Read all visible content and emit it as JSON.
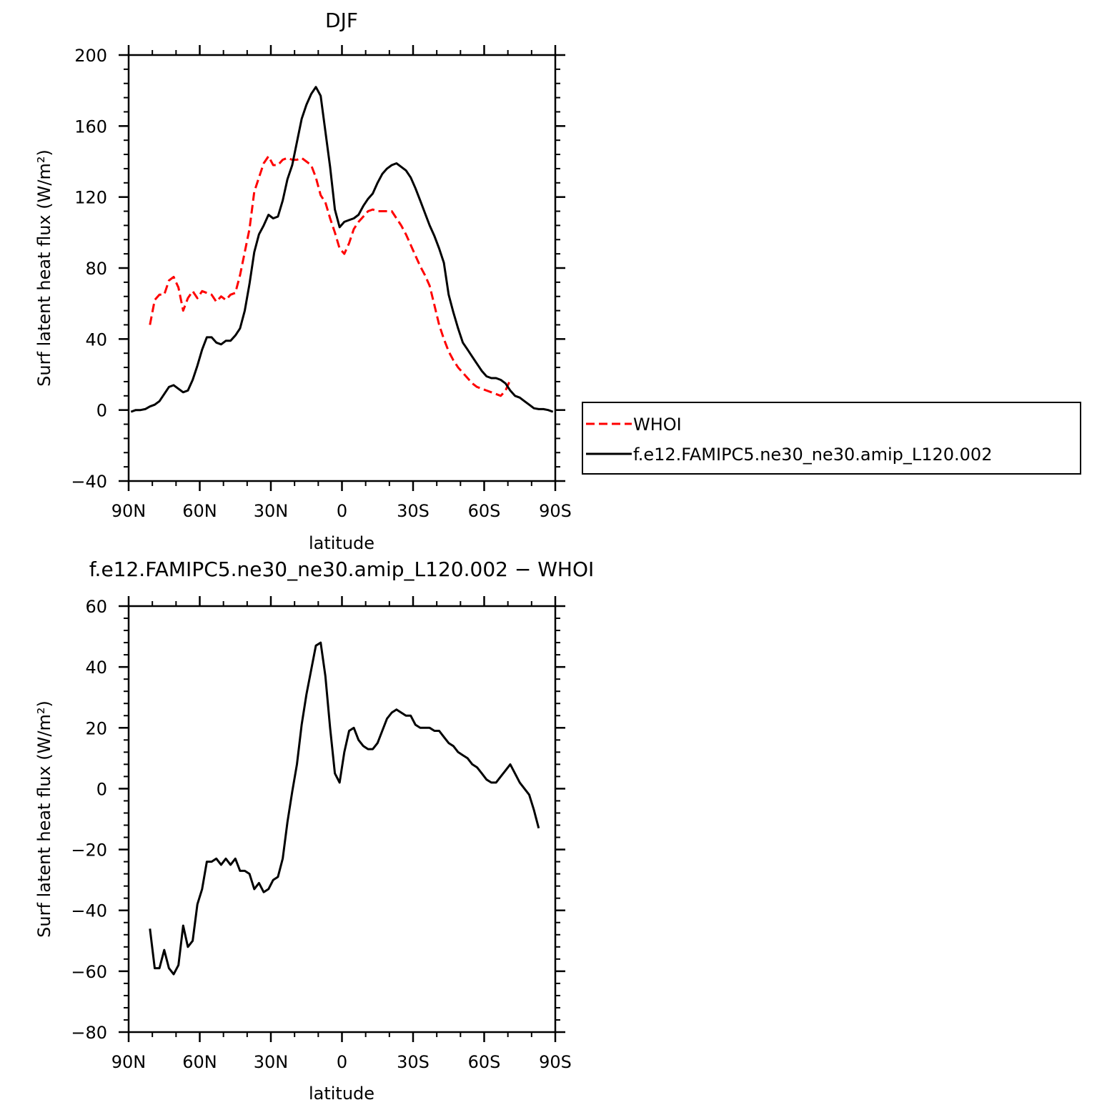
{
  "chart_data": [
    {
      "type": "line",
      "title": "DJF",
      "xlabel": "latitude",
      "ylabel": "Surf latent heat flux (W/m²)",
      "xlim": [
        90,
        -90
      ],
      "ylim": [
        -40,
        200
      ],
      "xticks": [
        {
          "value": 90,
          "label": "90N"
        },
        {
          "value": 60,
          "label": "60N"
        },
        {
          "value": 30,
          "label": "30N"
        },
        {
          "value": 0,
          "label": "0"
        },
        {
          "value": -30,
          "label": "30S"
        },
        {
          "value": -60,
          "label": "60S"
        },
        {
          "value": -90,
          "label": "90S"
        }
      ],
      "yticks": [
        {
          "value": 200,
          "label": "200"
        },
        {
          "value": 160,
          "label": "160"
        },
        {
          "value": 120,
          "label": "120"
        },
        {
          "value": 80,
          "label": "80"
        },
        {
          "value": 40,
          "label": "40"
        },
        {
          "value": 0,
          "label": "0"
        },
        {
          "value": -40,
          "label": "-40"
        }
      ],
      "legend": "outside-right",
      "series": [
        {
          "name": "WHOI",
          "color": "#ff0000",
          "dash": "dashed",
          "points": [
            [
              81,
              48
            ],
            [
              79,
              62
            ],
            [
              77,
              65
            ],
            [
              75,
              65
            ],
            [
              73,
              73
            ],
            [
              71,
              75
            ],
            [
              69,
              69
            ],
            [
              67,
              56
            ],
            [
              65,
              63
            ],
            [
              63,
              67
            ],
            [
              61,
              63
            ],
            [
              59,
              67
            ],
            [
              57,
              66
            ],
            [
              55,
              65
            ],
            [
              53,
              61
            ],
            [
              51,
              64
            ],
            [
              49,
              62
            ],
            [
              47,
              65
            ],
            [
              45,
              66
            ],
            [
              43,
              76
            ],
            [
              41,
              89
            ],
            [
              39,
              102
            ],
            [
              37,
              123
            ],
            [
              35,
              131
            ],
            [
              33,
              139
            ],
            [
              31,
              143
            ],
            [
              29,
              138
            ],
            [
              27,
              138
            ],
            [
              25,
              141
            ],
            [
              23,
              142
            ],
            [
              21,
              141
            ],
            [
              19,
              141
            ],
            [
              17,
              142
            ],
            [
              15,
              140
            ],
            [
              13,
              138
            ],
            [
              11,
              131
            ],
            [
              9,
              121
            ],
            [
              7,
              117
            ],
            [
              5,
              108
            ],
            [
              3,
              100
            ],
            [
              1,
              91
            ],
            [
              -1,
              88
            ],
            [
              -3,
              94
            ],
            [
              -5,
              102
            ],
            [
              -7,
              106
            ],
            [
              -9,
              109
            ],
            [
              -11,
              112
            ],
            [
              -13,
              113
            ],
            [
              -15,
              112
            ],
            [
              -17,
              112
            ],
            [
              -19,
              112
            ],
            [
              -21,
              112
            ],
            [
              -23,
              108
            ],
            [
              -25,
              104
            ],
            [
              -27,
              99
            ],
            [
              -29,
              93
            ],
            [
              -31,
              87
            ],
            [
              -33,
              81
            ],
            [
              -35,
              76
            ],
            [
              -37,
              70
            ],
            [
              -39,
              59
            ],
            [
              -41,
              48
            ],
            [
              -43,
              40
            ],
            [
              -45,
              33
            ],
            [
              -47,
              28
            ],
            [
              -49,
              24
            ],
            [
              -51,
              21
            ],
            [
              -53,
              18
            ],
            [
              -55,
              15
            ],
            [
              -57,
              13
            ],
            [
              -59,
              12
            ],
            [
              -61,
              11
            ],
            [
              -63,
              10
            ],
            [
              -65,
              9
            ],
            [
              -67,
              8
            ],
            [
              -69,
              11
            ],
            [
              -71,
              17
            ]
          ]
        },
        {
          "name": "f.e12.FAMIPC5.ne30_ne30.amip_L120.002",
          "color": "#000000",
          "dash": "solid",
          "points": [
            [
              89,
              -1
            ],
            [
              87,
              0
            ],
            [
              85,
              0
            ],
            [
              83,
              0.5
            ],
            [
              81,
              2
            ],
            [
              79,
              3
            ],
            [
              77,
              5
            ],
            [
              75,
              9
            ],
            [
              73,
              13
            ],
            [
              71,
              14
            ],
            [
              69,
              12
            ],
            [
              67,
              10
            ],
            [
              65,
              11
            ],
            [
              63,
              17
            ],
            [
              61,
              25
            ],
            [
              59,
              34
            ],
            [
              57,
              41
            ],
            [
              55,
              41
            ],
            [
              53,
              38
            ],
            [
              51,
              37
            ],
            [
              49,
              39
            ],
            [
              47,
              39
            ],
            [
              45,
              42
            ],
            [
              43,
              46
            ],
            [
              41,
              56
            ],
            [
              39,
              71
            ],
            [
              37,
              89
            ],
            [
              35,
              99
            ],
            [
              33,
              104
            ],
            [
              31,
              110
            ],
            [
              29,
              108
            ],
            [
              27,
              109
            ],
            [
              25,
              118
            ],
            [
              23,
              130
            ],
            [
              21,
              138
            ],
            [
              19,
              151
            ],
            [
              17,
              164
            ],
            [
              15,
              172
            ],
            [
              13,
              178
            ],
            [
              11,
              182
            ],
            [
              9,
              177
            ],
            [
              7,
              157
            ],
            [
              5,
              137
            ],
            [
              3,
              113
            ],
            [
              1,
              103
            ],
            [
              -1,
              106
            ],
            [
              -3,
              107
            ],
            [
              -5,
              108
            ],
            [
              -7,
              110
            ],
            [
              -9,
              115
            ],
            [
              -11,
              119
            ],
            [
              -13,
              122
            ],
            [
              -15,
              128
            ],
            [
              -17,
              133
            ],
            [
              -19,
              136
            ],
            [
              -21,
              138
            ],
            [
              -23,
              139
            ],
            [
              -25,
              137
            ],
            [
              -27,
              135
            ],
            [
              -29,
              131
            ],
            [
              -31,
              125
            ],
            [
              -33,
              118
            ],
            [
              -35,
              111
            ],
            [
              -37,
              104
            ],
            [
              -39,
              98
            ],
            [
              -41,
              91
            ],
            [
              -43,
              83
            ],
            [
              -45,
              65
            ],
            [
              -47,
              55
            ],
            [
              -49,
              46
            ],
            [
              -51,
              38
            ],
            [
              -53,
              34
            ],
            [
              -55,
              30
            ],
            [
              -57,
              26
            ],
            [
              -59,
              22
            ],
            [
              -61,
              19
            ],
            [
              -63,
              18
            ],
            [
              -65,
              18
            ],
            [
              -67,
              17
            ],
            [
              -69,
              15
            ],
            [
              -71,
              11
            ],
            [
              -73,
              8
            ],
            [
              -75,
              7
            ],
            [
              -77,
              5
            ],
            [
              -79,
              3
            ],
            [
              -81,
              1
            ],
            [
              -83,
              0.5
            ],
            [
              -85,
              0.5
            ],
            [
              -87,
              0
            ],
            [
              -89,
              -1
            ]
          ]
        }
      ]
    },
    {
      "type": "line",
      "title": "f.e12.FAMIPC5.ne30_ne30.amip_L120.002 − WHOI",
      "xlabel": "latitude",
      "ylabel": "Surf latent heat flux (W/m²)",
      "xlim": [
        90,
        -90
      ],
      "ylim": [
        -80,
        60
      ],
      "xticks": [
        {
          "value": 90,
          "label": "90N"
        },
        {
          "value": 60,
          "label": "60N"
        },
        {
          "value": 30,
          "label": "30N"
        },
        {
          "value": 0,
          "label": "0"
        },
        {
          "value": -30,
          "label": "30S"
        },
        {
          "value": -60,
          "label": "60S"
        },
        {
          "value": -90,
          "label": "90S"
        }
      ],
      "yticks": [
        {
          "value": 60,
          "label": "60"
        },
        {
          "value": 40,
          "label": "40"
        },
        {
          "value": 20,
          "label": "20"
        },
        {
          "value": 0,
          "label": "0"
        },
        {
          "value": -20,
          "label": "-20"
        },
        {
          "value": -40,
          "label": "-40"
        },
        {
          "value": -60,
          "label": "-60"
        },
        {
          "value": -80,
          "label": "-80"
        }
      ],
      "series": [
        {
          "color": "#000000",
          "dash": "solid",
          "points": [
            [
              81,
              -46
            ],
            [
              79,
              -59
            ],
            [
              77,
              -59
            ],
            [
              75,
              -53
            ],
            [
              73,
              -59
            ],
            [
              71,
              -61
            ],
            [
              69,
              -58
            ],
            [
              67,
              -45
            ],
            [
              65,
              -52
            ],
            [
              63,
              -50
            ],
            [
              61,
              -38
            ],
            [
              59,
              -33
            ],
            [
              57,
              -24
            ],
            [
              55,
              -24
            ],
            [
              53,
              -23
            ],
            [
              51,
              -25
            ],
            [
              49,
              -23
            ],
            [
              47,
              -25
            ],
            [
              45,
              -23
            ],
            [
              43,
              -27
            ],
            [
              41,
              -27
            ],
            [
              39,
              -28
            ],
            [
              37,
              -33
            ],
            [
              35,
              -31
            ],
            [
              33,
              -34
            ],
            [
              31,
              -33
            ],
            [
              29,
              -30
            ],
            [
              27,
              -29
            ],
            [
              25,
              -23
            ],
            [
              23,
              -11
            ],
            [
              21,
              -1
            ],
            [
              19,
              8
            ],
            [
              17,
              21
            ],
            [
              15,
              31
            ],
            [
              13,
              39
            ],
            [
              11,
              47
            ],
            [
              9,
              48
            ],
            [
              7,
              37
            ],
            [
              5,
              20
            ],
            [
              3,
              5
            ],
            [
              1,
              2
            ],
            [
              -1,
              12
            ],
            [
              -3,
              19
            ],
            [
              -5,
              20
            ],
            [
              -7,
              16
            ],
            [
              -9,
              14
            ],
            [
              -11,
              13
            ],
            [
              -13,
              13
            ],
            [
              -15,
              15
            ],
            [
              -17,
              19
            ],
            [
              -19,
              23
            ],
            [
              -21,
              25
            ],
            [
              -23,
              26
            ],
            [
              -25,
              25
            ],
            [
              -27,
              24
            ],
            [
              -29,
              24
            ],
            [
              -31,
              21
            ],
            [
              -33,
              20
            ],
            [
              -35,
              20
            ],
            [
              -37,
              20
            ],
            [
              -39,
              19
            ],
            [
              -41,
              19
            ],
            [
              -43,
              17
            ],
            [
              -45,
              15
            ],
            [
              -47,
              14
            ],
            [
              -49,
              12
            ],
            [
              -51,
              11
            ],
            [
              -53,
              10
            ],
            [
              -55,
              8
            ],
            [
              -57,
              7
            ],
            [
              -59,
              5
            ],
            [
              -61,
              3
            ],
            [
              -63,
              2
            ],
            [
              -65,
              2
            ],
            [
              -67,
              4
            ],
            [
              -69,
              6
            ],
            [
              -71,
              8
            ],
            [
              -73,
              5
            ],
            [
              -75,
              2
            ],
            [
              -77,
              0
            ],
            [
              -79,
              -2
            ],
            [
              -81,
              -7
            ],
            [
              -83,
              -13
            ]
          ]
        }
      ]
    }
  ]
}
